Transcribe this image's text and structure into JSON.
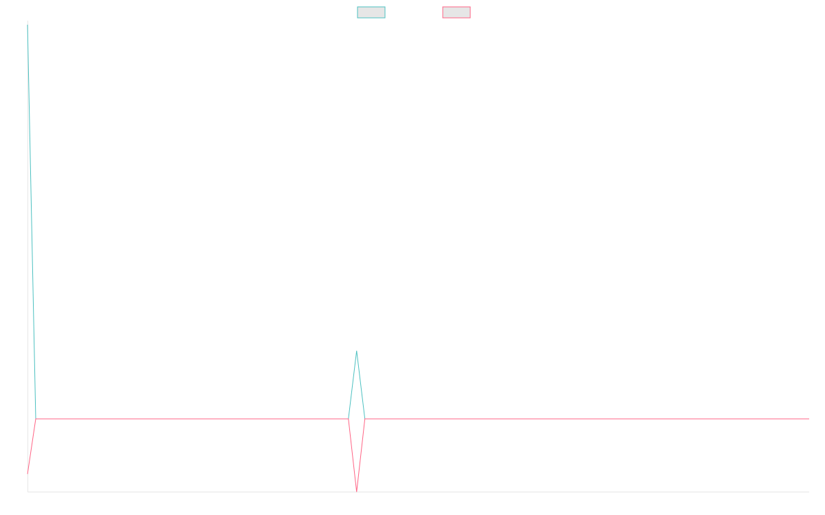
{
  "chart_data": {
    "type": "line",
    "title": "",
    "xlabel": "",
    "ylabel": "",
    "x": [
      0,
      1,
      2,
      3,
      4,
      5,
      6,
      7,
      8,
      9,
      10,
      11,
      12,
      13,
      14,
      15,
      16,
      17,
      18,
      19,
      20,
      21,
      22,
      23,
      24,
      25,
      26,
      27,
      28,
      29,
      30,
      31,
      32,
      33,
      34,
      35,
      36,
      37,
      38,
      39,
      40,
      41,
      42,
      43,
      44,
      45,
      46,
      47,
      48,
      49,
      50,
      51,
      52,
      53,
      54,
      55,
      56,
      57,
      58,
      59,
      60,
      61,
      62,
      63,
      64,
      65,
      66,
      67,
      68,
      69,
      70,
      71,
      72,
      73,
      74,
      75,
      76,
      77,
      78,
      79,
      80,
      81,
      82,
      83,
      84,
      85,
      86,
      87,
      88,
      89,
      90,
      91,
      92,
      93,
      94,
      95
    ],
    "ylim": [
      -1,
      5.5
    ],
    "grid": false,
    "legend_position": "top-center",
    "series": [
      {
        "name": "",
        "color": "#4bc0c0",
        "legend_fill": "#e6e6e6",
        "values": [
          5.5,
          0,
          0,
          0,
          0,
          0,
          0,
          0,
          0,
          0,
          0,
          0,
          0,
          0,
          0,
          0,
          0,
          0,
          0,
          0,
          0,
          0,
          0,
          0,
          0,
          0,
          0,
          0,
          0,
          0,
          0,
          0,
          0,
          0,
          0,
          0,
          0,
          0,
          0,
          0,
          0.95,
          0,
          0,
          0,
          0,
          0,
          0,
          0,
          0,
          0,
          0,
          0,
          0,
          0,
          0,
          0,
          0,
          0,
          0,
          0,
          0,
          0,
          0,
          0,
          0,
          0,
          0,
          0,
          0,
          0,
          0,
          0,
          0,
          0,
          0,
          0,
          0,
          0,
          0,
          0,
          0,
          0,
          0,
          0,
          0,
          0,
          0,
          0,
          0,
          0,
          0,
          0,
          0,
          0,
          0,
          0
        ]
      },
      {
        "name": "",
        "color": "#ff6384",
        "legend_fill": "#e6e6e6",
        "values": [
          -0.77,
          0,
          0,
          0,
          0,
          0,
          0,
          0,
          0,
          0,
          0,
          0,
          0,
          0,
          0,
          0,
          0,
          0,
          0,
          0,
          0,
          0,
          0,
          0,
          0,
          0,
          0,
          0,
          0,
          0,
          0,
          0,
          0,
          0,
          0,
          0,
          0,
          0,
          0,
          0,
          -1.02,
          0,
          0,
          0,
          0,
          0,
          0,
          0,
          0,
          0,
          0,
          0,
          0,
          0,
          0,
          0,
          0,
          0,
          0,
          0,
          0,
          0,
          0,
          0,
          0,
          0,
          0,
          0,
          0,
          0,
          0,
          0,
          0,
          0,
          0,
          0,
          0,
          0,
          0,
          0,
          0,
          0,
          0,
          0,
          0,
          0,
          0,
          0,
          0,
          0,
          0,
          0,
          0,
          0,
          0,
          0
        ]
      }
    ]
  }
}
